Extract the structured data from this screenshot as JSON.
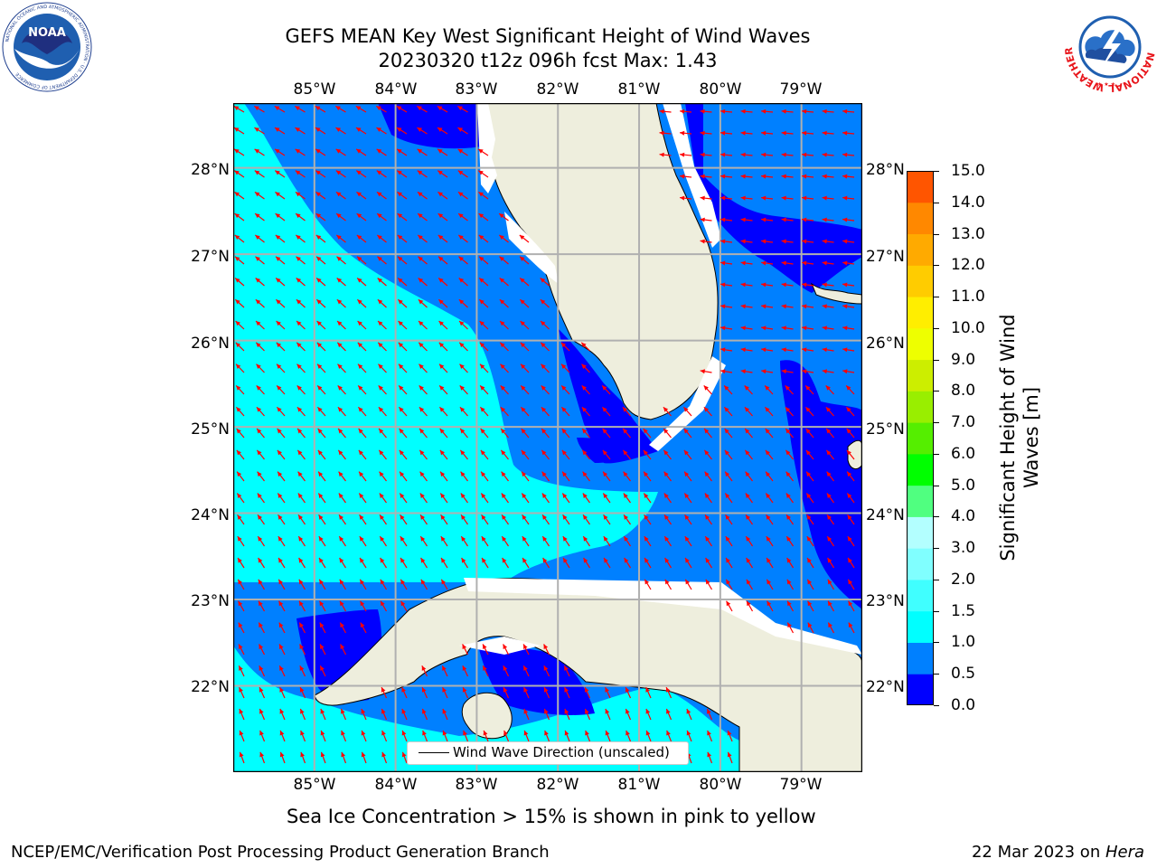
{
  "header": {
    "title_line1": "GEFS MEAN Key West Significant Height of Wind Waves",
    "title_line2": "20230320 t12z 096h fcst   Max: 1.43"
  },
  "map": {
    "lon_labels": [
      "85°W",
      "84°W",
      "83°W",
      "82°W",
      "81°W",
      "80°W",
      "79°W"
    ],
    "lat_labels": [
      "28°N",
      "27°N",
      "26°N",
      "25°N",
      "24°N",
      "23°N",
      "22°N"
    ],
    "extent": {
      "lon_min": -86.0,
      "lon_max": -78.25,
      "lat_min": 21.0,
      "lat_max": 28.75
    },
    "legend_label": "Wind Wave Direction (unscaled)",
    "arrow_color": "#ff0000",
    "land_color": "#eeeedd"
  },
  "colorbar": {
    "title_line1": "Significant Height of Wind",
    "title_line2": "Waves [m]",
    "tick_labels": [
      "0.0",
      "0.5",
      "1.0",
      "1.5",
      "2.0",
      "3.0",
      "4.0",
      "5.0",
      "6.0",
      "7.0",
      "8.0",
      "9.0",
      "10.0",
      "11.0",
      "12.0",
      "13.0",
      "14.0",
      "15.0"
    ],
    "colors": [
      "#0000ff",
      "#0080ff",
      "#00ffff",
      "#40ffff",
      "#80ffff",
      "#b3ffff",
      "#50ff80",
      "#00ff00",
      "#55ee00",
      "#99ee00",
      "#ccee00",
      "#eeff00",
      "#ffee00",
      "#ffcc00",
      "#ffaa00",
      "#ff8800",
      "#ff5500",
      "#ff2200",
      "#ff0000"
    ]
  },
  "footer": {
    "sea_ice_note": "Sea Ice Concentration > 15% is shown in pink to yellow",
    "credit": "NCEP/EMC/Verification Post Processing Product Generation Branch",
    "date_prefix": "22 Mar 2023 on ",
    "host": "Hera"
  },
  "logos": {
    "noaa_text": "NOAA",
    "noaa_ring": "NATIONAL OCEANIC AND ATMOSPHERIC ADMINISTRATION · U.S. DEPARTMENT OF COMMERCE",
    "nws_ring": "NATIONAL WEATHER SERVICE"
  }
}
